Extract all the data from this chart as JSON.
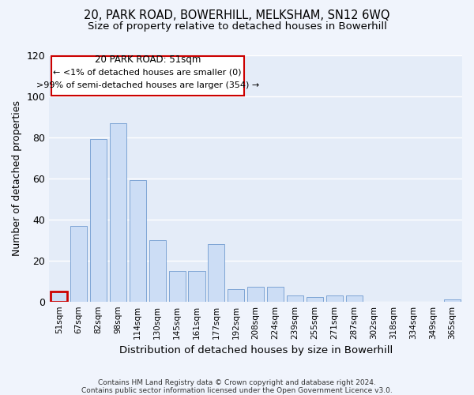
{
  "title1": "20, PARK ROAD, BOWERHILL, MELKSHAM, SN12 6WQ",
  "title2": "Size of property relative to detached houses in Bowerhill",
  "xlabel": "Distribution of detached houses by size in Bowerhill",
  "ylabel": "Number of detached properties",
  "categories": [
    "51sqm",
    "67sqm",
    "82sqm",
    "98sqm",
    "114sqm",
    "130sqm",
    "145sqm",
    "161sqm",
    "177sqm",
    "192sqm",
    "208sqm",
    "224sqm",
    "239sqm",
    "255sqm",
    "271sqm",
    "287sqm",
    "302sqm",
    "318sqm",
    "334sqm",
    "349sqm",
    "365sqm"
  ],
  "values": [
    5,
    37,
    79,
    87,
    59,
    30,
    15,
    15,
    28,
    6,
    7,
    7,
    3,
    2,
    3,
    3,
    0,
    0,
    0,
    0,
    1
  ],
  "bar_color": "#ccddf5",
  "bar_edge_color": "#5b8cc8",
  "highlight_index": 0,
  "highlight_color": "#cc0000",
  "ylim": [
    0,
    120
  ],
  "yticks": [
    0,
    20,
    40,
    60,
    80,
    100,
    120
  ],
  "annotation_title": "20 PARK ROAD: 51sqm",
  "annotation_line1": "← <1% of detached houses are smaller (0)",
  "annotation_line2": ">99% of semi-detached houses are larger (354) →",
  "footer1": "Contains HM Land Registry data © Crown copyright and database right 2024.",
  "footer2": "Contains public sector information licensed under the Open Government Licence v3.0.",
  "bg_color": "#f0f4fc",
  "plot_bg_color": "#e4ecf8",
  "grid_color": "#ffffff"
}
